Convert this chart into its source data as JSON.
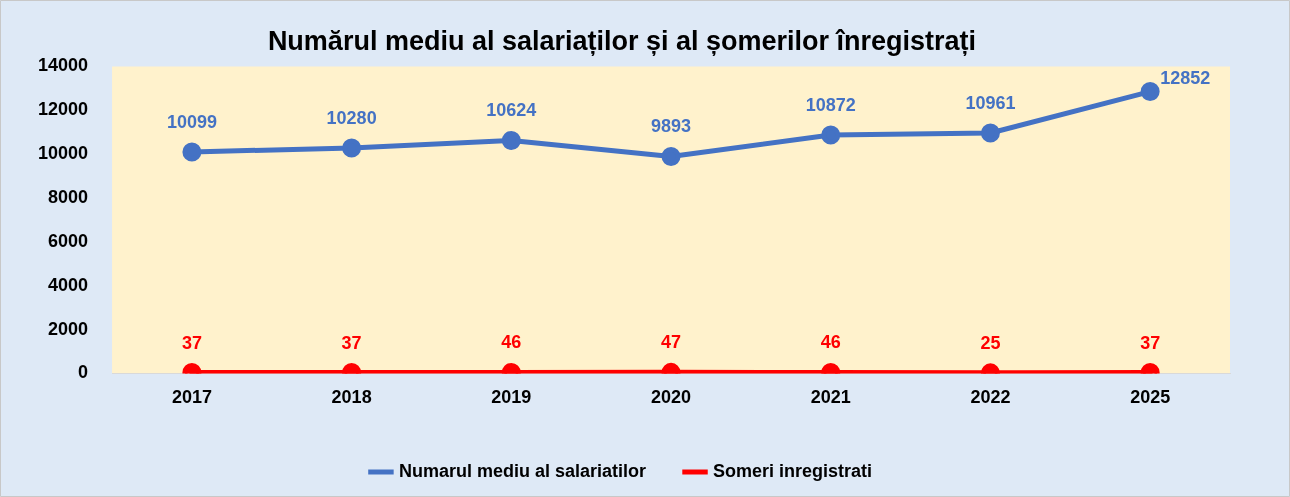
{
  "chart_data": {
    "type": "line",
    "title": "Numărul mediu al salariaților și al șomerilor înregistrați",
    "categories": [
      "2017",
      "2018",
      "2019",
      "2020",
      "2021",
      "2022",
      "2025"
    ],
    "series": [
      {
        "name": "Numarul mediu al salariatilor",
        "color": "#4472c4",
        "values": [
          10099,
          10280,
          10624,
          9893,
          10872,
          10961,
          12852
        ]
      },
      {
        "name": "Someri inregistrati",
        "color": "#ff0000",
        "values": [
          37,
          37,
          46,
          47,
          46,
          25,
          37
        ]
      }
    ],
    "ylim": [
      0,
      14000
    ],
    "yticks": [
      0,
      2000,
      4000,
      6000,
      8000,
      10000,
      12000,
      14000
    ],
    "grid": false,
    "legend": "bottom",
    "marker": "circle",
    "line_style": "solid",
    "data_labels": true
  }
}
